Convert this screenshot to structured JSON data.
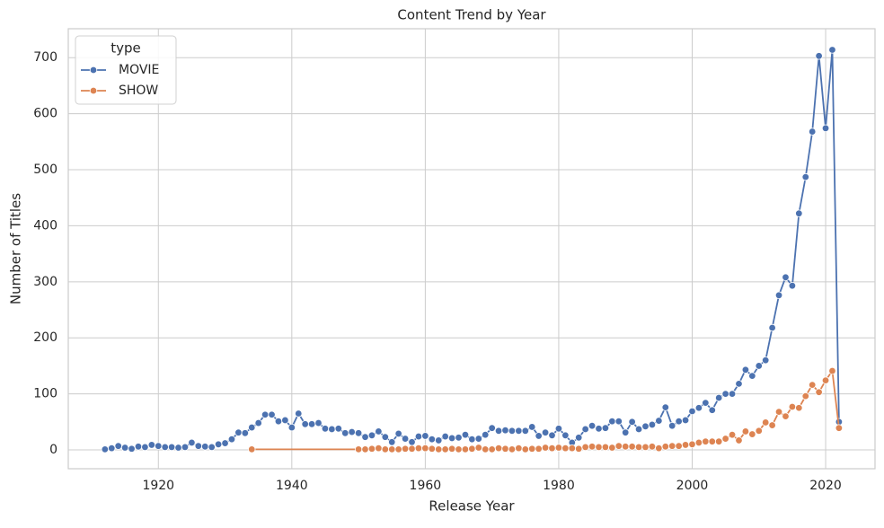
{
  "chart_data": {
    "type": "line",
    "title": "Content Trend by Year",
    "x_label": "Release Year",
    "y_label": "Number of Titles",
    "legend_title": "type",
    "legend_loc": "upper left",
    "grid": true,
    "xlim": [
      1906.5,
      2027.4
    ],
    "ylim": [
      -33.6,
      751.6
    ],
    "xticks": [
      1920,
      1940,
      1960,
      1980,
      2000,
      2020
    ],
    "yticks": [
      0,
      100,
      200,
      300,
      400,
      500,
      600,
      700
    ],
    "series": [
      {
        "name": "MOVIE",
        "color": "#4c72b0",
        "x": [
          1912,
          1913,
          1914,
          1915,
          1916,
          1917,
          1918,
          1919,
          1920,
          1921,
          1922,
          1923,
          1924,
          1925,
          1926,
          1927,
          1928,
          1929,
          1930,
          1931,
          1932,
          1933,
          1934,
          1935,
          1936,
          1937,
          1938,
          1939,
          1940,
          1941,
          1942,
          1943,
          1944,
          1945,
          1946,
          1947,
          1948,
          1949,
          1950,
          1951,
          1952,
          1953,
          1954,
          1955,
          1956,
          1957,
          1958,
          1959,
          1960,
          1961,
          1962,
          1963,
          1964,
          1965,
          1966,
          1967,
          1968,
          1969,
          1970,
          1971,
          1972,
          1973,
          1974,
          1975,
          1976,
          1977,
          1978,
          1979,
          1980,
          1981,
          1982,
          1983,
          1984,
          1985,
          1986,
          1987,
          1988,
          1989,
          1990,
          1991,
          1992,
          1993,
          1994,
          1995,
          1996,
          1997,
          1998,
          1999,
          2000,
          2001,
          2002,
          2003,
          2004,
          2005,
          2006,
          2007,
          2008,
          2009,
          2010,
          2011,
          2012,
          2013,
          2014,
          2015,
          2016,
          2017,
          2018,
          2019,
          2020,
          2021,
          2022
        ],
        "values": [
          1,
          3,
          7,
          4,
          2,
          6,
          5,
          9,
          7,
          5,
          5,
          4,
          5,
          13,
          7,
          6,
          5,
          10,
          12,
          19,
          31,
          30,
          40,
          48,
          63,
          63,
          51,
          53,
          40,
          65,
          46,
          46,
          48,
          38,
          37,
          38,
          30,
          32,
          30,
          23,
          26,
          33,
          23,
          14,
          29,
          20,
          14,
          24,
          25,
          19,
          17,
          24,
          21,
          22,
          27,
          19,
          20,
          27,
          39,
          34,
          35,
          34,
          34,
          34,
          41,
          25,
          31,
          26,
          38,
          26,
          13,
          22,
          37,
          43,
          38,
          39,
          51,
          51,
          31,
          50,
          37,
          42,
          45,
          52,
          76,
          43,
          51,
          53,
          69,
          75,
          84,
          71,
          93,
          100,
          100,
          118,
          143,
          132,
          150,
          160,
          218,
          276,
          308,
          293,
          422,
          487,
          568,
          703,
          574,
          714,
          50
        ]
      },
      {
        "name": "SHOW",
        "color": "#dd8452",
        "x": [
          1934,
          1950,
          1951,
          1952,
          1953,
          1954,
          1955,
          1956,
          1957,
          1958,
          1959,
          1960,
          1961,
          1962,
          1963,
          1964,
          1965,
          1966,
          1967,
          1968,
          1969,
          1970,
          1971,
          1972,
          1973,
          1974,
          1975,
          1976,
          1977,
          1978,
          1979,
          1980,
          1981,
          1982,
          1983,
          1984,
          1985,
          1986,
          1987,
          1988,
          1989,
          1990,
          1991,
          1992,
          1993,
          1994,
          1995,
          1996,
          1997,
          1998,
          1999,
          2000,
          2001,
          2002,
          2003,
          2004,
          2005,
          2006,
          2007,
          2008,
          2009,
          2010,
          2011,
          2012,
          2013,
          2014,
          2015,
          2016,
          2017,
          2018,
          2019,
          2020,
          2021,
          2022
        ],
        "values": [
          1,
          1,
          1,
          2,
          3,
          1,
          1,
          1,
          2,
          2,
          3,
          3,
          2,
          1,
          1,
          2,
          1,
          1,
          2,
          4,
          1,
          1,
          3,
          2,
          1,
          3,
          1,
          2,
          2,
          4,
          3,
          4,
          3,
          3,
          2,
          5,
          6,
          5,
          5,
          4,
          7,
          6,
          6,
          5,
          5,
          6,
          3,
          6,
          7,
          7,
          9,
          10,
          13,
          15,
          15,
          15,
          20,
          27,
          17,
          33,
          28,
          34,
          49,
          44,
          68,
          60,
          77,
          75,
          96,
          116,
          103,
          124,
          141,
          39
        ]
      }
    ]
  }
}
